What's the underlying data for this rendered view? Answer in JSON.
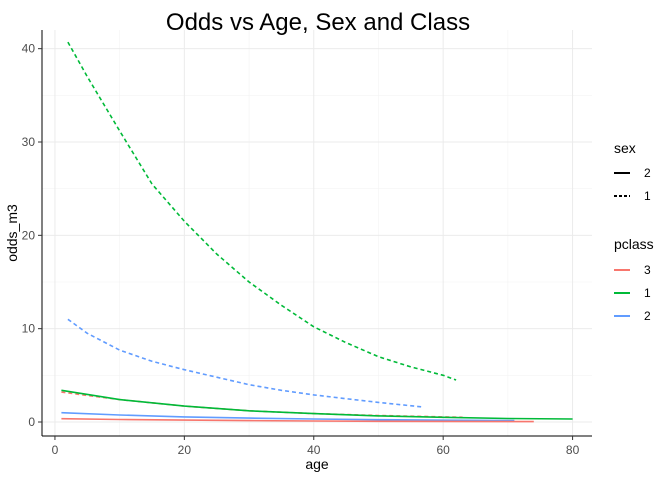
{
  "chart_data": {
    "type": "line",
    "title": "Odds vs Age, Sex and Class",
    "xlabel": "age",
    "ylabel": "odds_m3",
    "xlim": [
      -2,
      83
    ],
    "ylim": [
      -1.5,
      42
    ],
    "x_ticks": [
      0,
      20,
      40,
      60,
      80
    ],
    "y_ticks": [
      0,
      10,
      20,
      30,
      40
    ],
    "grid": true,
    "legend_position": "right",
    "legends": {
      "sex": {
        "title": "sex",
        "entries": [
          {
            "label": "2",
            "linetype": "solid"
          },
          {
            "label": "1",
            "linetype": "dashed"
          }
        ]
      },
      "pclass": {
        "title": "pclass",
        "entries": [
          {
            "label": "3",
            "color": "#F8766D"
          },
          {
            "label": "1",
            "color": "#00BA38"
          },
          {
            "label": "2",
            "color": "#619CFF"
          }
        ]
      }
    },
    "series": [
      {
        "sex": "1",
        "pclass": "1",
        "color": "#00BA38",
        "linetype": "dashed",
        "x": [
          2,
          5,
          10,
          15,
          20,
          25,
          30,
          35,
          40,
          45,
          50,
          55,
          60,
          62
        ],
        "y": [
          40.7,
          37.0,
          31.2,
          25.5,
          21.5,
          18.0,
          15.0,
          12.5,
          10.2,
          8.5,
          7.0,
          5.9,
          5.0,
          4.5
        ]
      },
      {
        "sex": "1",
        "pclass": "2",
        "color": "#619CFF",
        "linetype": "dashed",
        "x": [
          2,
          5,
          10,
          15,
          20,
          25,
          30,
          35,
          40,
          45,
          50,
          57
        ],
        "y": [
          11.0,
          9.5,
          7.7,
          6.5,
          5.6,
          4.8,
          4.0,
          3.4,
          2.9,
          2.5,
          2.1,
          1.6
        ]
      },
      {
        "sex": "1",
        "pclass": "3",
        "color": "#F8766D",
        "linetype": "dashed",
        "x": [
          1,
          10,
          20,
          30,
          40,
          50,
          63
        ],
        "y": [
          3.2,
          2.4,
          1.7,
          1.2,
          0.9,
          0.7,
          0.5
        ]
      },
      {
        "sex": "2",
        "pclass": "1",
        "color": "#00BA38",
        "linetype": "solid",
        "x": [
          1,
          10,
          20,
          30,
          40,
          50,
          60,
          70,
          80
        ],
        "y": [
          3.4,
          2.4,
          1.7,
          1.2,
          0.9,
          0.65,
          0.5,
          0.38,
          0.32
        ]
      },
      {
        "sex": "2",
        "pclass": "2",
        "color": "#619CFF",
        "linetype": "solid",
        "x": [
          1,
          10,
          20,
          30,
          40,
          50,
          60,
          71
        ],
        "y": [
          1.0,
          0.75,
          0.55,
          0.42,
          0.32,
          0.25,
          0.19,
          0.15
        ]
      },
      {
        "sex": "2",
        "pclass": "3",
        "color": "#F8766D",
        "linetype": "solid",
        "x": [
          1,
          10,
          20,
          30,
          40,
          50,
          60,
          74
        ],
        "y": [
          0.35,
          0.27,
          0.2,
          0.15,
          0.11,
          0.08,
          0.06,
          0.04
        ]
      }
    ]
  }
}
